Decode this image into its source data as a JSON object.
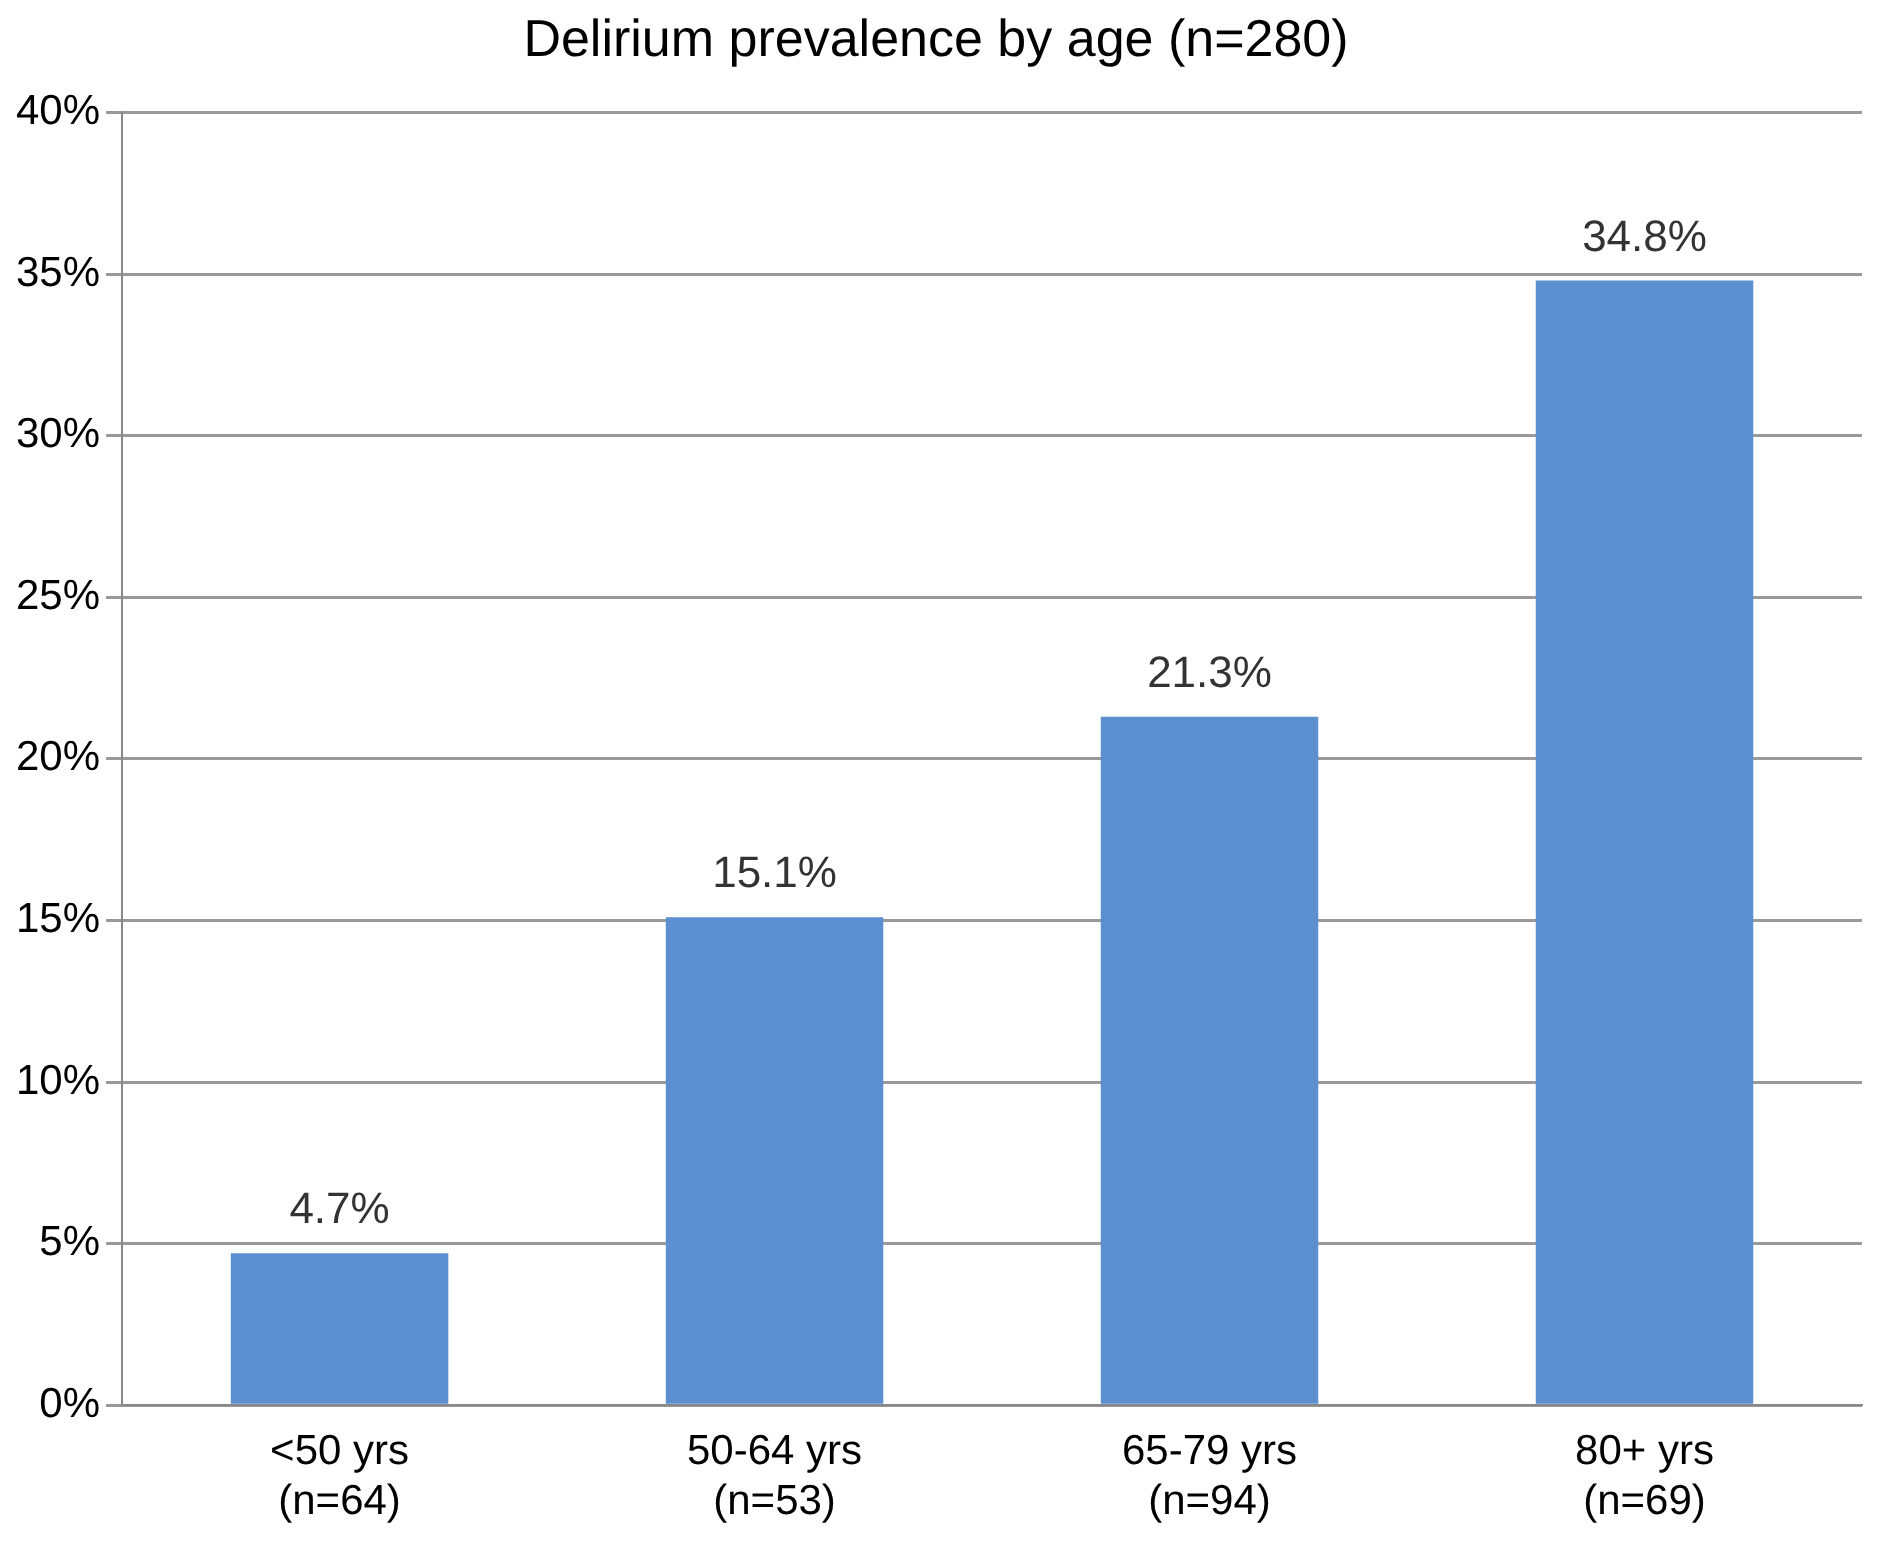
{
  "chart_data": {
    "type": "bar",
    "title": "Delirium prevalence by age (n=280)",
    "categories": [
      "<50 yrs\n(n=64)",
      "50-64 yrs\n(n=53)",
      "65-79 yrs\n(n=94)",
      "80+ yrs\n(n=69)"
    ],
    "values": [
      4.7,
      15.1,
      21.3,
      34.8
    ],
    "value_labels": [
      "4.7%",
      "15.1%",
      "21.3%",
      "34.8%"
    ],
    "color": "#5b8fd0",
    "ylim": [
      0,
      40
    ],
    "yticks": [
      {
        "value": 0,
        "label": "0%"
      },
      {
        "value": 5,
        "label": "5%"
      },
      {
        "value": 10,
        "label": "10%"
      },
      {
        "value": 15,
        "label": "15%"
      },
      {
        "value": 20,
        "label": "20%"
      },
      {
        "value": 25,
        "label": "25%"
      },
      {
        "value": 30,
        "label": "30%"
      },
      {
        "value": 35,
        "label": "35%"
      },
      {
        "value": 40,
        "label": "40%"
      }
    ],
    "grid": "y"
  }
}
